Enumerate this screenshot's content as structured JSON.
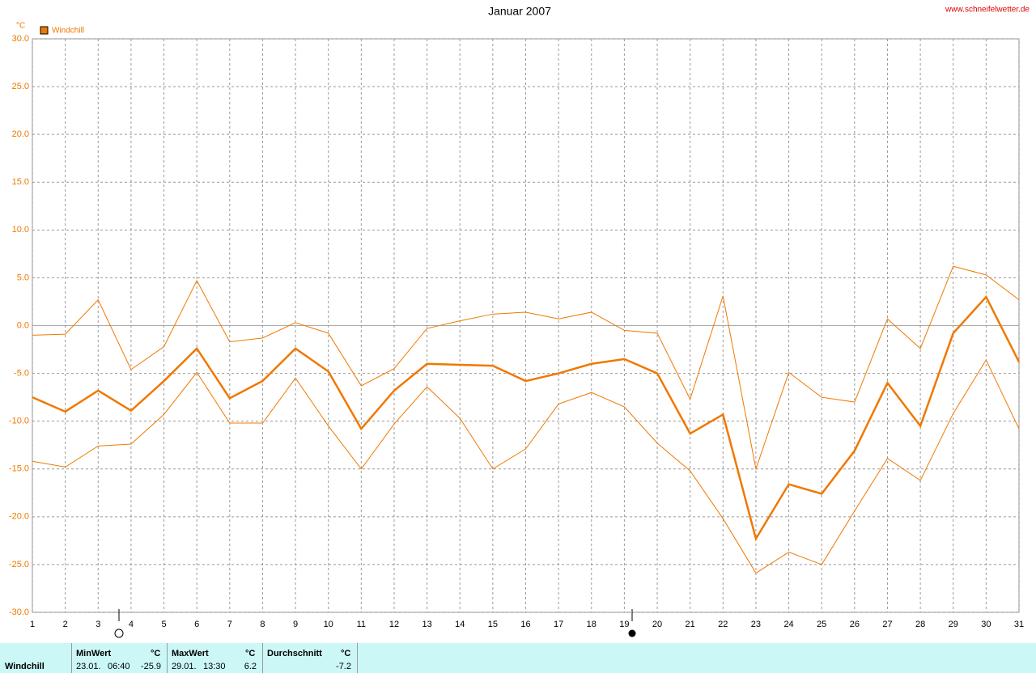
{
  "chart_data": {
    "type": "line",
    "title": "Januar 2007",
    "source": "www.schneifelwetter.de",
    "y_unit": "°C",
    "x": [
      1,
      2,
      3,
      4,
      5,
      6,
      7,
      8,
      9,
      10,
      11,
      12,
      13,
      14,
      15,
      16,
      17,
      18,
      19,
      20,
      21,
      22,
      23,
      24,
      25,
      26,
      27,
      28,
      29,
      30,
      31
    ],
    "xlim": [
      1,
      31
    ],
    "ylim": [
      -30,
      30
    ],
    "yticks": [
      {
        "value": -30,
        "label": "-30.0"
      },
      {
        "value": -25,
        "label": "-25.0"
      },
      {
        "value": -20,
        "label": "-20.0"
      },
      {
        "value": -15,
        "label": "-15.0"
      },
      {
        "value": -10,
        "label": "-10.0"
      },
      {
        "value": -5,
        "label": "-5.0"
      },
      {
        "value": 0,
        "label": "0.0"
      },
      {
        "value": 5,
        "label": "5.0"
      },
      {
        "value": 10,
        "label": "10.0"
      },
      {
        "value": 15,
        "label": "15.0"
      },
      {
        "value": 20,
        "label": "20.0"
      },
      {
        "value": 25,
        "label": "25.0"
      },
      {
        "value": 30,
        "label": "30.0"
      }
    ],
    "grid": true,
    "series": [
      {
        "name": "Windchill",
        "color": "#f07800",
        "values": [
          -7.5,
          -9.0,
          -6.8,
          -8.9,
          -5.8,
          -2.4,
          -7.6,
          -5.8,
          -2.4,
          -4.8,
          -10.8,
          -6.8,
          -4.0,
          -4.1,
          -4.2,
          -5.8,
          -5.0,
          -4.0,
          -3.5,
          -5.0,
          -11.3,
          -9.3,
          -22.3,
          -16.6,
          -17.6,
          -13.1,
          -6.0,
          -10.5,
          -0.8,
          3.0,
          -3.8
        ]
      },
      {
        "color": "#f07800",
        "values": [
          -1.0,
          -0.9,
          2.7,
          -4.6,
          -2.2,
          4.7,
          -1.7,
          -1.3,
          0.3,
          -0.8,
          -6.3,
          -4.5,
          -0.3,
          0.5,
          1.2,
          1.4,
          0.7,
          1.4,
          -0.5,
          -0.8,
          -7.7,
          3.1,
          -15.0,
          -4.9,
          -7.5,
          -8.0,
          0.7,
          -2.4,
          6.2,
          5.3,
          2.7
        ]
      },
      {
        "color": "#f07800",
        "values": [
          -14.2,
          -14.8,
          -12.6,
          -12.4,
          -9.3,
          -4.9,
          -10.2,
          -10.2,
          -5.5,
          -10.5,
          -15.0,
          -10.3,
          -6.4,
          -9.7,
          -15.0,
          -12.9,
          -8.2,
          -7.0,
          -8.5,
          -12.3,
          -15.2,
          -20.2,
          -25.9,
          -23.7,
          -25.0,
          -19.4,
          -13.9,
          -16.2,
          -9.2,
          -3.6,
          -10.8
        ]
      }
    ]
  },
  "table": {
    "row_label": "Windchill",
    "columns": [
      {
        "header": "MinWert",
        "unit": "°C",
        "date": "23.01.",
        "time": "06:40",
        "value": -25.9
      },
      {
        "header": "MaxWert",
        "unit": "°C",
        "date": "29.01.",
        "time": "13:30",
        "value": 6.2
      },
      {
        "header": "Durchschnitt",
        "unit": "°C",
        "value": -7.2
      }
    ]
  }
}
